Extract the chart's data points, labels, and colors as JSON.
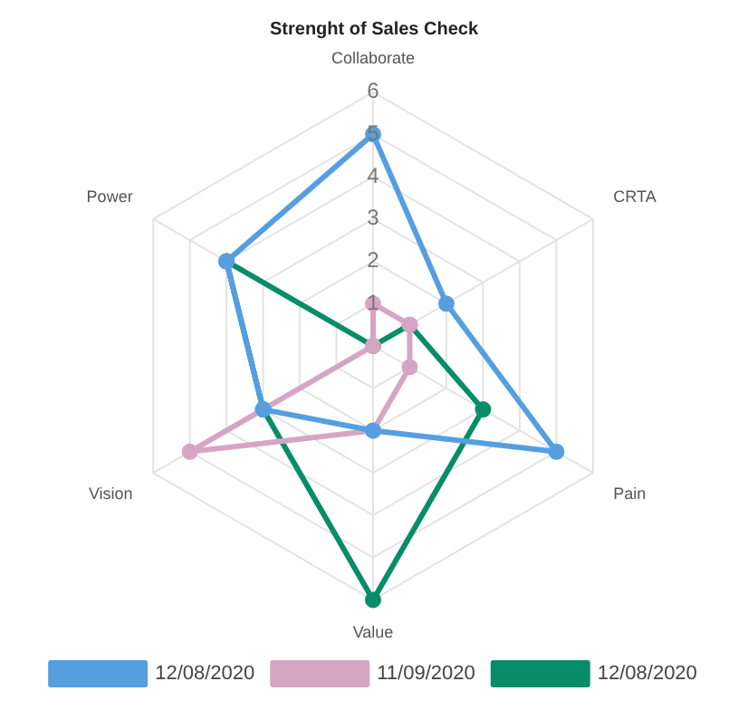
{
  "chart_data": {
    "type": "radar",
    "title": "Strenght of Sales Check",
    "categories": [
      "Collaborate",
      "CRTA",
      "Pain",
      "Value",
      "Vision",
      "Power"
    ],
    "series": [
      {
        "name": "12/08/2020",
        "color": "#559fe0",
        "values": [
          5,
          2,
          5,
          2,
          3,
          4
        ]
      },
      {
        "name": "11/09/2020",
        "color": "#d7a5c4",
        "values": [
          1,
          1,
          1,
          2,
          5,
          0
        ]
      },
      {
        "name": "12/08/2020",
        "color": "#078d68",
        "values": [
          0,
          1,
          3,
          6,
          3,
          4
        ]
      }
    ],
    "ylim": [
      0,
      6
    ],
    "yticks": [
      1,
      2,
      3,
      4,
      5,
      6
    ],
    "grid": true,
    "legend": "bottom",
    "marker": "circle",
    "line_style": "solid"
  }
}
